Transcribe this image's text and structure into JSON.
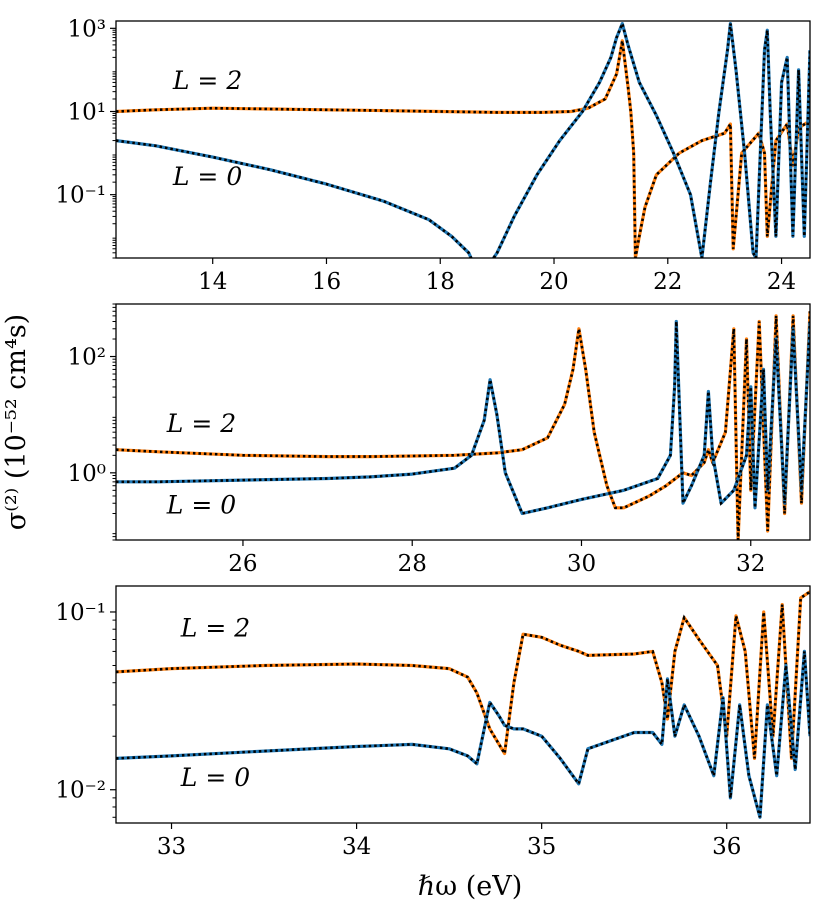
{
  "figure": {
    "ylabel": "σ⁽²⁾ (10⁻⁵² cm⁴s)",
    "xlabel": "ℏω (eV)"
  },
  "colors": {
    "L0": "#1f77b4",
    "L2": "#ff7f0e",
    "overlay": "#000000"
  },
  "chart_data": [
    {
      "type": "line",
      "yscale": "log",
      "xlim": [
        12.3,
        24.5
      ],
      "ylim": [
        0.003,
        1500
      ],
      "xticks": [
        14,
        16,
        18,
        20,
        22,
        24
      ],
      "xtick_labels": [
        "14",
        "16",
        "18",
        "20",
        "22",
        "24"
      ],
      "yticks": [
        0.1,
        10,
        1000
      ],
      "ytick_labels": [
        "10⁻¹",
        "10¹",
        "10³"
      ],
      "annotations": [
        {
          "text": "L = 2",
          "x": 13.3,
          "y": 35
        },
        {
          "text": "L = 0",
          "x": 13.3,
          "y": 0.17
        }
      ],
      "series": [
        {
          "name": "L = 2",
          "color": "#ff7f0e",
          "x": [
            12.3,
            13,
            14,
            15,
            16,
            17,
            18,
            19,
            19.8,
            20.3,
            20.6,
            20.9,
            21.1,
            21.2,
            21.3,
            21.35,
            21.4,
            21.43,
            21.5,
            21.6,
            21.8,
            22.2,
            22.6,
            23.0,
            23.1,
            23.15,
            23.3,
            23.6,
            23.7,
            23.75,
            23.9,
            24.1,
            24.2,
            24.3,
            24.5
          ],
          "values": [
            10,
            11,
            12,
            11.5,
            11,
            10.5,
            10,
            9.5,
            9.5,
            10,
            12,
            20,
            80,
            500,
            40,
            10,
            1,
            0.003,
            0.01,
            0.05,
            0.3,
            1,
            2,
            3,
            5,
            0.005,
            1,
            3,
            1,
            0.01,
            2,
            5,
            0.5,
            4,
            6
          ]
        },
        {
          "name": "L = 0",
          "color": "#1f77b4",
          "x": [
            12.3,
            13,
            14,
            15,
            16,
            17,
            17.8,
            18.2,
            18.5,
            18.6,
            18.85,
            19.0,
            19.3,
            19.7,
            20.1,
            20.5,
            20.8,
            21.0,
            21.1,
            21.2,
            21.3,
            21.5,
            21.8,
            22.1,
            22.4,
            22.6,
            22.75,
            22.9,
            23.05,
            23.1,
            23.2,
            23.35,
            23.5,
            23.55,
            23.7,
            23.75,
            23.8,
            23.9,
            24.0,
            24.1,
            24.2,
            24.3,
            24.4,
            24.5
          ],
          "values": [
            2,
            1.5,
            0.8,
            0.4,
            0.18,
            0.07,
            0.025,
            0.01,
            0.004,
            0.002,
            0.002,
            0.004,
            0.03,
            0.3,
            2,
            10,
            50,
            200,
            600,
            1300,
            400,
            50,
            8,
            1,
            0.1,
            0.003,
            0.2,
            10,
            300,
            1300,
            100,
            1,
            0.004,
            0.003,
            300,
            900,
            10,
            0.01,
            50,
            200,
            0.01,
            100,
            0.01,
            300
          ]
        }
      ]
    },
    {
      "type": "line",
      "yscale": "log",
      "xlim": [
        24.5,
        32.7
      ],
      "ylim": [
        0.07,
        800
      ],
      "xticks": [
        26,
        28,
        30,
        32
      ],
      "xtick_labels": [
        "26",
        "28",
        "30",
        "32"
      ],
      "yticks": [
        1,
        100
      ],
      "ytick_labels": [
        "10⁰",
        "10²"
      ],
      "annotations": [
        {
          "text": "L = 2",
          "x": 25.1,
          "y": 5
        },
        {
          "text": "L = 0",
          "x": 25.1,
          "y": 0.2
        }
      ],
      "series": [
        {
          "name": "L = 2",
          "color": "#ff7f0e",
          "x": [
            24.5,
            25,
            26,
            27,
            27.5,
            28,
            28.5,
            29,
            29.3,
            29.6,
            29.8,
            29.9,
            29.97,
            30.05,
            30.15,
            30.3,
            30.4,
            30.5,
            30.8,
            31.0,
            31.2,
            31.3,
            31.45,
            31.5,
            31.55,
            31.7,
            31.8,
            31.85,
            31.95,
            32.0,
            32.1,
            32.2,
            32.3,
            32.4,
            32.5,
            32.6,
            32.7
          ],
          "values": [
            2.5,
            2.3,
            2.0,
            1.9,
            1.9,
            1.95,
            2.0,
            2.2,
            2.5,
            4,
            15,
            60,
            300,
            60,
            5,
            0.6,
            0.25,
            0.25,
            0.4,
            0.6,
            1.0,
            0.9,
            1.5,
            2.5,
            1.5,
            5,
            300,
            0.07,
            200,
            0.5,
            400,
            0.1,
            500,
            0.2,
            500,
            0.3,
            600
          ]
        },
        {
          "name": "L = 0",
          "color": "#1f77b4",
          "x": [
            24.5,
            25,
            26,
            27,
            27.5,
            28,
            28.5,
            28.7,
            28.85,
            28.92,
            29.0,
            29.1,
            29.3,
            29.6,
            30,
            30.5,
            30.9,
            31.05,
            31.1,
            31.12,
            31.2,
            31.3,
            31.45,
            31.5,
            31.55,
            31.65,
            31.8,
            31.95,
            32.0,
            32.05,
            32.15,
            32.2,
            32.3,
            32.4,
            32.5,
            32.6,
            32.7
          ],
          "values": [
            0.7,
            0.7,
            0.75,
            0.8,
            0.85,
            0.95,
            1.2,
            2,
            8,
            40,
            10,
            1,
            0.2,
            0.25,
            0.35,
            0.5,
            0.8,
            2,
            30,
            400,
            0.3,
            0.6,
            2,
            25,
            2,
            0.3,
            0.5,
            2,
            30,
            0.25,
            60,
            0.5,
            200,
            0.3,
            300,
            0.5,
            400
          ]
        }
      ]
    },
    {
      "type": "line",
      "yscale": "log",
      "xlim": [
        32.7,
        36.45
      ],
      "ylim": [
        0.0065,
        0.14
      ],
      "xticks": [
        33,
        34,
        35,
        36
      ],
      "xtick_labels": [
        "33",
        "34",
        "35",
        "36"
      ],
      "yticks": [
        0.01,
        0.1
      ],
      "ytick_labels": [
        "10⁻²",
        "10⁻¹"
      ],
      "annotations": [
        {
          "text": "L = 2",
          "x": 33.05,
          "y": 0.073
        },
        {
          "text": "L = 0",
          "x": 33.05,
          "y": 0.0105
        }
      ],
      "series": [
        {
          "name": "L = 2",
          "color": "#ff7f0e",
          "x": [
            32.7,
            33,
            33.5,
            34,
            34.3,
            34.5,
            34.6,
            34.65,
            34.72,
            34.77,
            34.8,
            34.85,
            34.9,
            35.0,
            35.1,
            35.2,
            35.25,
            35.5,
            35.6,
            35.65,
            35.68,
            35.72,
            35.77,
            35.85,
            35.95,
            36.0,
            36.05,
            36.1,
            36.15,
            36.2,
            36.25,
            36.3,
            36.35,
            36.4,
            36.45
          ],
          "values": [
            0.046,
            0.048,
            0.05,
            0.051,
            0.05,
            0.048,
            0.043,
            0.035,
            0.022,
            0.018,
            0.016,
            0.04,
            0.075,
            0.072,
            0.065,
            0.06,
            0.057,
            0.058,
            0.06,
            0.04,
            0.025,
            0.06,
            0.093,
            0.07,
            0.05,
            0.02,
            0.095,
            0.06,
            0.015,
            0.1,
            0.02,
            0.11,
            0.015,
            0.12,
            0.13
          ]
        },
        {
          "name": "L = 0",
          "color": "#1f77b4",
          "x": [
            32.7,
            33,
            33.5,
            34,
            34.3,
            34.5,
            34.6,
            34.65,
            34.72,
            34.77,
            34.8,
            34.85,
            34.9,
            35.0,
            35.1,
            35.2,
            35.25,
            35.5,
            35.6,
            35.65,
            35.68,
            35.72,
            35.77,
            35.85,
            35.93,
            35.98,
            36.02,
            36.07,
            36.12,
            36.18,
            36.22,
            36.27,
            36.32,
            36.37,
            36.42,
            36.45
          ],
          "values": [
            0.015,
            0.0155,
            0.0165,
            0.0175,
            0.018,
            0.017,
            0.0155,
            0.014,
            0.031,
            0.026,
            0.023,
            0.022,
            0.022,
            0.02,
            0.015,
            0.0108,
            0.017,
            0.021,
            0.021,
            0.018,
            0.042,
            0.02,
            0.03,
            0.02,
            0.012,
            0.033,
            0.009,
            0.03,
            0.012,
            0.007,
            0.03,
            0.012,
            0.05,
            0.013,
            0.06,
            0.02
          ]
        }
      ]
    }
  ]
}
